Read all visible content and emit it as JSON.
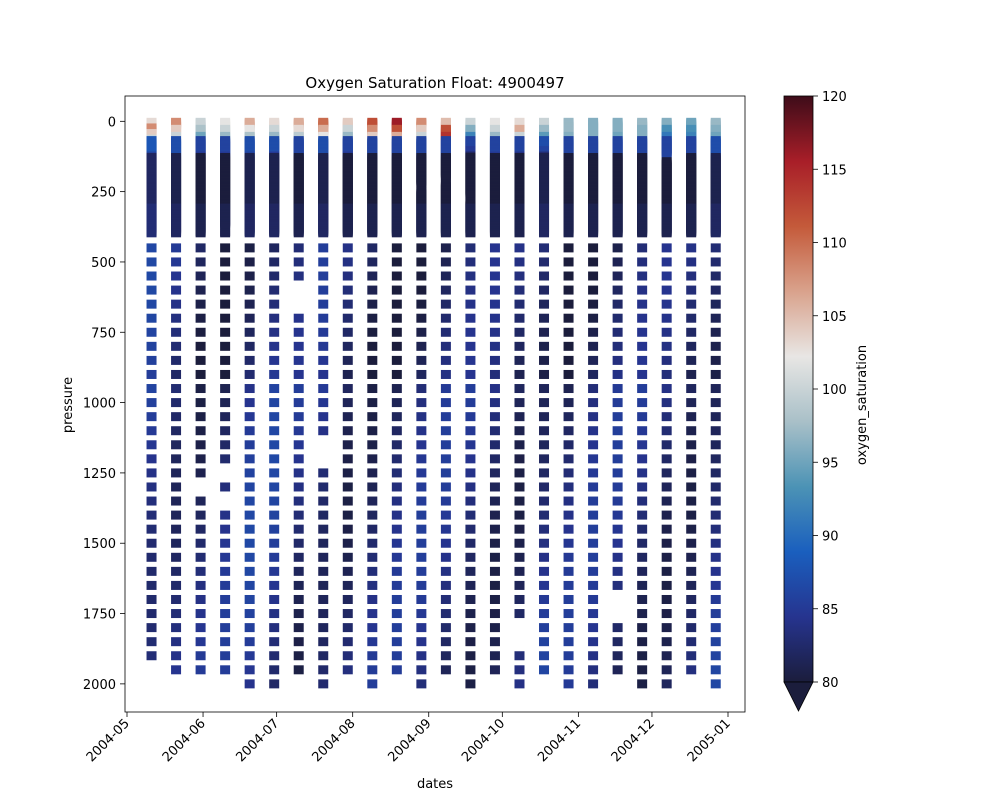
{
  "chart_data": {
    "type": "heatmap",
    "title": "Oxygen Saturation Float: 4900497",
    "xlabel": "dates",
    "ylabel": "pressure",
    "x_ticks": [
      "2004-05",
      "2004-06",
      "2004-07",
      "2004-08",
      "2004-09",
      "2004-10",
      "2004-11",
      "2004-12",
      "2005-01"
    ],
    "y_ticks": [
      "0",
      "250",
      "500",
      "750",
      "1000",
      "1250",
      "1500",
      "1750",
      "2000"
    ],
    "ylim": [
      2100,
      -90
    ],
    "colorbar": {
      "label": "oxygen_saturation",
      "range": [
        80,
        120
      ],
      "ticks": [
        "80",
        "85",
        "90",
        "95",
        "100",
        "105",
        "110",
        "115",
        "120"
      ],
      "extend": "min",
      "stops": [
        "#1b1d3c",
        "#26348f",
        "#1a5fbe",
        "#4c93b5",
        "#a9c0c8",
        "#e8e6e4",
        "#d9a28c",
        "#c45a3a",
        "#a81e28",
        "#3e0c19"
      ]
    },
    "profiles": [
      {
        "date": "2004-05-11",
        "surface": [
          103,
          108,
          104,
          100,
          95,
          90,
          86
        ],
        "deep": 82,
        "mid_gap": [],
        "bottom": 1920,
        "missing": []
      },
      {
        "date": "2004-05-21",
        "surface": [
          108,
          104,
          100,
          96,
          92,
          88
        ],
        "deep": 81,
        "mid_gap": [],
        "bottom": 1960,
        "missing": []
      },
      {
        "date": "2004-05-31",
        "surface": [
          100,
          98,
          95,
          92,
          88,
          85
        ],
        "deep": 80,
        "mid_gap": [],
        "bottom": 1960,
        "missing": [
          1285,
          1310
        ]
      },
      {
        "date": "2004-06-10",
        "surface": [
          102,
          100,
          97,
          93,
          89,
          85
        ],
        "deep": 80,
        "mid_gap": [
          385
        ],
        "bottom": 1960,
        "missing": [
          1230,
          1250,
          1335
        ]
      },
      {
        "date": "2004-06-20",
        "surface": [
          106,
          102,
          98,
          94,
          90,
          86
        ],
        "deep": 81,
        "mid_gap": [],
        "bottom": 2000,
        "missing": []
      },
      {
        "date": "2004-06-30",
        "surface": [
          103,
          100,
          97,
          93,
          89,
          85
        ],
        "deep": 81,
        "mid_gap": [],
        "bottom": 2000,
        "missing": []
      },
      {
        "date": "2004-07-10",
        "surface": [
          106,
          103,
          99,
          95,
          91,
          87
        ],
        "deep": 80,
        "mid_gap": [],
        "bottom": 1960,
        "missing": [
          620,
          660
        ]
      },
      {
        "date": "2004-07-20",
        "surface": [
          110,
          106,
          102,
          98,
          94,
          90
        ],
        "deep": 81,
        "mid_gap": [],
        "bottom": 2000,
        "missing": [
          1160,
          1200
        ]
      },
      {
        "date": "2004-07-30",
        "surface": [
          104,
          100,
          97,
          93,
          89,
          85
        ],
        "deep": 80,
        "mid_gap": [],
        "bottom": 1960,
        "missing": []
      },
      {
        "date": "2004-08-09",
        "surface": [
          112,
          108,
          104,
          100,
          95,
          90
        ],
        "deep": 80,
        "mid_gap": [],
        "bottom": 2000,
        "missing": []
      },
      {
        "date": "2004-08-19",
        "surface": [
          116,
          112,
          106,
          101,
          96,
          91
        ],
        "deep": 80,
        "mid_gap": [],
        "bottom": 1960,
        "missing": []
      },
      {
        "date": "2004-08-29",
        "surface": [
          108,
          104,
          100,
          96,
          92,
          88
        ],
        "deep": 80,
        "mid_gap": [
          235
        ],
        "bottom": 2000,
        "missing": []
      },
      {
        "date": "2004-09-08",
        "surface": [
          105,
          112,
          114,
          101,
          92,
          86
        ],
        "deep": 80,
        "mid_gap": [
          210
        ],
        "bottom": 1960,
        "missing": []
      },
      {
        "date": "2004-09-18",
        "surface": [
          100,
          96,
          92,
          88,
          85,
          82
        ],
        "deep": 80,
        "mid_gap": [
          275
        ],
        "bottom": 2000,
        "missing": []
      },
      {
        "date": "2004-09-28",
        "surface": [
          102,
          100,
          97,
          93,
          89,
          85
        ],
        "deep": 80,
        "mid_gap": [],
        "bottom": 1960,
        "missing": []
      },
      {
        "date": "2004-10-08",
        "surface": [
          103,
          106,
          100,
          94,
          89,
          84
        ],
        "deep": 80,
        "mid_gap": [],
        "bottom": 2000,
        "missing": [
          1785,
          1830,
          1865
        ]
      },
      {
        "date": "2004-10-18",
        "surface": [
          100,
          97,
          94,
          90,
          86,
          83
        ],
        "deep": 81,
        "mid_gap": [],
        "bottom": 1960,
        "missing": []
      },
      {
        "date": "2004-10-28",
        "surface": [
          97,
          97,
          96,
          96,
          95,
          95
        ],
        "deep": 80,
        "mid_gap": [],
        "bottom": 2000,
        "missing": []
      },
      {
        "date": "2004-11-07",
        "surface": [
          96,
          96,
          96,
          95,
          95,
          95
        ],
        "deep": 80,
        "mid_gap": [],
        "bottom": 2000,
        "missing": []
      },
      {
        "date": "2004-11-17",
        "surface": [
          96,
          96,
          95,
          95,
          95,
          94
        ],
        "deep": 80,
        "mid_gap": [],
        "bottom": 1960,
        "missing": [
          1675,
          1710,
          1750
        ]
      },
      {
        "date": "2004-11-27",
        "surface": [
          97,
          96,
          96,
          95,
          95,
          94
        ],
        "deep": 80,
        "mid_gap": [],
        "bottom": 2000,
        "missing": []
      },
      {
        "date": "2004-12-07",
        "surface": [
          96,
          93,
          91,
          95,
          94,
          93
        ],
        "deep": 80,
        "mid_gap": [
          130
        ],
        "bottom": 2000,
        "missing": []
      },
      {
        "date": "2004-12-17",
        "surface": [
          95,
          93,
          92,
          94,
          93,
          93
        ],
        "deep": 80,
        "mid_gap": [],
        "bottom": 1960,
        "missing": []
      },
      {
        "date": "2004-12-27",
        "surface": [
          97,
          96,
          95,
          94,
          93,
          92
        ],
        "deep": 81,
        "mid_gap": [],
        "bottom": 2000,
        "missing": []
      }
    ]
  }
}
